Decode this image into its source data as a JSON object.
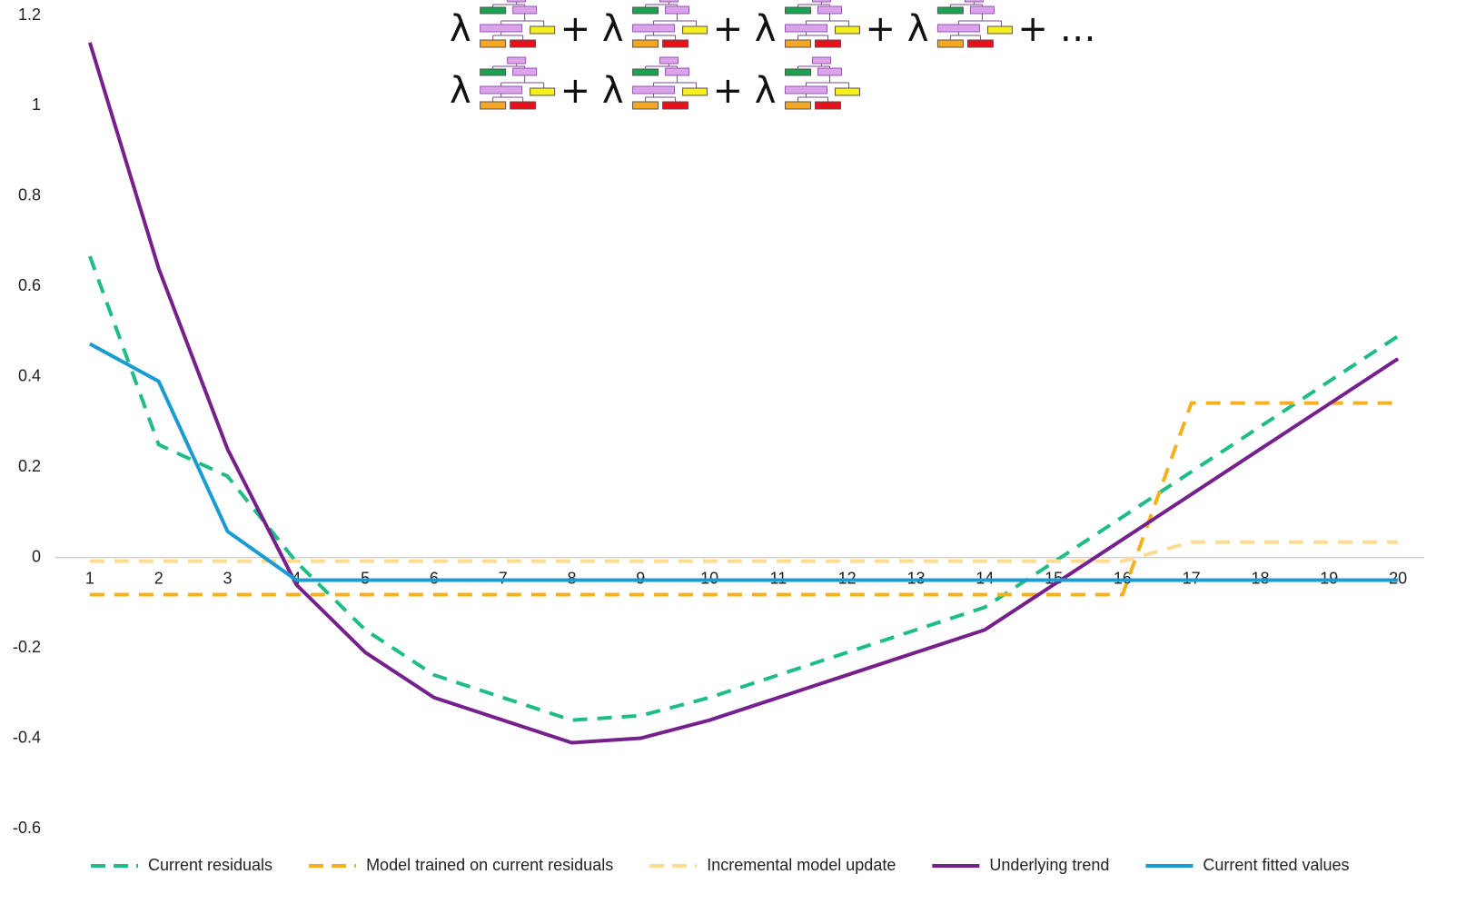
{
  "chart_data": {
    "type": "line",
    "formula": [
      [
        "λ",
        "+ λ",
        "+ λ",
        "+ λ",
        "+ …"
      ],
      [
        "λ",
        "+ λ",
        "+ λ"
      ]
    ],
    "categories": [
      "1",
      "2",
      "3",
      "4",
      "5",
      "6",
      "7",
      "8",
      "9",
      "10",
      "11",
      "12",
      "13",
      "14",
      "15",
      "16",
      "17",
      "18",
      "19",
      "20"
    ],
    "series": [
      {
        "name": "Current residuals",
        "color": "#1ebd85",
        "dashed": true,
        "values": [
          0.667,
          0.25,
          0.18,
          -0.01,
          -0.16,
          -0.26,
          -0.31,
          -0.36,
          -0.35,
          -0.31,
          -0.26,
          -0.21,
          -0.16,
          -0.11,
          -0.01,
          0.09,
          0.19,
          0.29,
          0.39,
          0.49
        ]
      },
      {
        "name": "Model trained on current residuals",
        "color": "#f6b01e",
        "dashed": true,
        "values": [
          -0.082,
          -0.082,
          -0.082,
          -0.082,
          -0.082,
          -0.082,
          -0.082,
          -0.082,
          -0.082,
          -0.082,
          -0.082,
          -0.082,
          -0.082,
          -0.082,
          -0.082,
          -0.082,
          0.342,
          0.342,
          0.342,
          0.342
        ]
      },
      {
        "name": "Incremental model update",
        "color": "#fddc92",
        "dashed": true,
        "values": [
          -0.008,
          -0.008,
          -0.008,
          -0.008,
          -0.008,
          -0.008,
          -0.008,
          -0.008,
          -0.008,
          -0.008,
          -0.008,
          -0.008,
          -0.008,
          -0.008,
          -0.008,
          -0.008,
          0.034,
          0.034,
          0.034,
          0.034
        ]
      },
      {
        "name": "Underlying trend",
        "color": "#75208c",
        "dashed": false,
        "values": [
          1.14,
          0.64,
          0.24,
          -0.06,
          -0.21,
          -0.31,
          -0.36,
          -0.41,
          -0.4,
          -0.36,
          -0.31,
          -0.26,
          -0.21,
          -0.16,
          -0.06,
          0.04,
          0.14,
          0.24,
          0.34,
          0.44
        ]
      },
      {
        "name": "Current fitted values",
        "color": "#1a9bd2",
        "dashed": false,
        "values": [
          0.473,
          0.39,
          0.058,
          -0.05,
          -0.05,
          -0.05,
          -0.05,
          -0.05,
          -0.05,
          -0.05,
          -0.05,
          -0.05,
          -0.05,
          -0.05,
          -0.05,
          -0.05,
          -0.05,
          -0.05,
          -0.05,
          -0.05
        ]
      }
    ],
    "ylim": [
      -0.6,
      1.2
    ],
    "yticks": [
      -0.6,
      -0.4,
      -0.2,
      0,
      0.2,
      0.4,
      0.6,
      0.8,
      1,
      1.2
    ],
    "grid": false,
    "legend": "bottom"
  }
}
